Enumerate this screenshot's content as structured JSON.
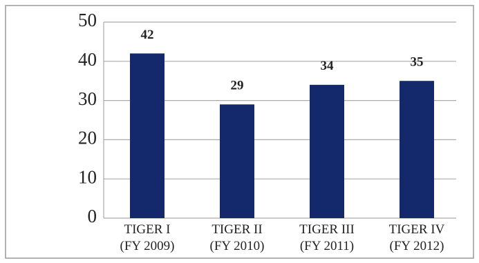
{
  "chart_data": {
    "type": "bar",
    "categories": [
      "TIGER I\n(FY 2009)",
      "TIGER II\n(FY 2010)",
      "TIGER III\n(FY 2011)",
      "TIGER IV\n(FY 2012)"
    ],
    "values": [
      42,
      29,
      34,
      35
    ],
    "color": "#14296b",
    "ylim": [
      0,
      50
    ],
    "yticks": [
      0,
      10,
      20,
      30,
      40,
      50
    ],
    "grid": true
  }
}
